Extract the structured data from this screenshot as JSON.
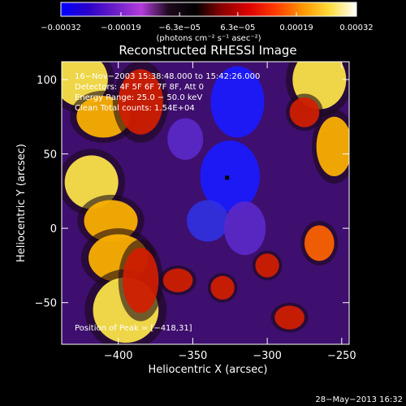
{
  "chart_data": {
    "type": "heatmap",
    "title": "Reconstructed RHESSI Image",
    "xlabel": "Heliocentric X (arcsec)",
    "ylabel": "Heliocentric Y (arcsec)",
    "xlim": [
      -438,
      -245
    ],
    "ylim": [
      -78,
      112
    ],
    "x_ticks": [
      -400,
      -350,
      -300,
      -250
    ],
    "y_ticks": [
      -50,
      0,
      50,
      100
    ],
    "x_tick_labels": [
      "−400",
      "−350",
      "−300",
      "−250"
    ],
    "y_tick_labels": [
      "−50",
      "0",
      "50",
      "100"
    ],
    "colorbar": {
      "range": [
        -0.00032,
        0.00032
      ],
      "ticks": [
        -0.00032,
        -0.00019,
        -6.3e-05,
        6.3e-05,
        0.00019,
        0.00032
      ],
      "tick_labels": [
        "−0.00032",
        "−0.00019",
        "−6.3e−05",
        "6.3e−05",
        "0.00019",
        "0.00032"
      ],
      "unit_label": "(photons cm⁻² s⁻¹ asec⁻²)",
      "stops": [
        "#0000ff",
        "#2a00c8",
        "#6a1ec8",
        "#b43cdc",
        "#1e0a1e",
        "#000000",
        "#8c0000",
        "#dc0000",
        "#ff3c00",
        "#ff9600",
        "#ffdc3c",
        "#ffffff"
      ]
    },
    "annotations": [
      "16−Nov−2003 15:38:48.000 to 15:42:26.000",
      "Detectors: 4F 5F 6F 7F 8F, Att 0",
      "Energy Range: 25.0 − 50.0 keV",
      "Clean    Total counts: 1.54E+04",
      "Position of Peak = [−418,31]"
    ],
    "marker": {
      "x": -327,
      "y": 34
    },
    "peak": {
      "x": -418,
      "y": 31
    },
    "features": [
      {
        "x": -425,
        "y": 100,
        "v": 0.95,
        "rx": 18,
        "ry": 18
      },
      {
        "x": -410,
        "y": 75,
        "v": 0.85,
        "rx": 18,
        "ry": 14
      },
      {
        "x": -418,
        "y": 31,
        "v": 1.0,
        "rx": 18,
        "ry": 18
      },
      {
        "x": -405,
        "y": 5,
        "v": 0.8,
        "rx": 18,
        "ry": 14
      },
      {
        "x": -400,
        "y": -20,
        "v": 0.85,
        "rx": 20,
        "ry": 16
      },
      {
        "x": -395,
        "y": -55,
        "v": 0.95,
        "rx": 22,
        "ry": 22
      },
      {
        "x": -385,
        "y": 85,
        "v": 0.55,
        "rx": 15,
        "ry": 22
      },
      {
        "x": -385,
        "y": -35,
        "v": 0.55,
        "rx": 12,
        "ry": 22
      },
      {
        "x": -360,
        "y": -35,
        "v": 0.5,
        "rx": 10,
        "ry": 8
      },
      {
        "x": -330,
        "y": -40,
        "v": 0.55,
        "rx": 8,
        "ry": 8
      },
      {
        "x": -300,
        "y": -25,
        "v": 0.55,
        "rx": 8,
        "ry": 8
      },
      {
        "x": -265,
        "y": -10,
        "v": 0.6,
        "rx": 10,
        "ry": 12
      },
      {
        "x": -285,
        "y": -60,
        "v": 0.45,
        "rx": 10,
        "ry": 8
      },
      {
        "x": -265,
        "y": 100,
        "v": 0.95,
        "rx": 18,
        "ry": 20
      },
      {
        "x": -255,
        "y": 55,
        "v": 0.75,
        "rx": 12,
        "ry": 20
      },
      {
        "x": -275,
        "y": 78,
        "v": 0.45,
        "rx": 10,
        "ry": 10
      },
      {
        "x": -325,
        "y": 35,
        "v": -1.0,
        "rx": 20,
        "ry": 24
      },
      {
        "x": -320,
        "y": 85,
        "v": -0.9,
        "rx": 18,
        "ry": 24
      },
      {
        "x": -340,
        "y": 5,
        "v": -0.75,
        "rx": 14,
        "ry": 14
      },
      {
        "x": -315,
        "y": 0,
        "v": -0.65,
        "rx": 14,
        "ry": 18
      },
      {
        "x": -355,
        "y": 60,
        "v": -0.55,
        "rx": 12,
        "ry": 14
      }
    ]
  },
  "timestamp": "28−May−2013 16:32"
}
